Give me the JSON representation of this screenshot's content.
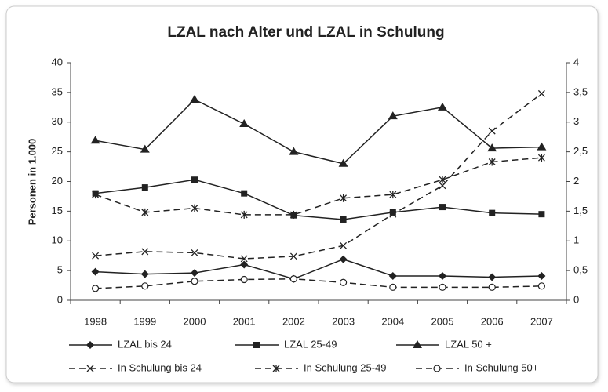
{
  "chart_data": {
    "type": "line",
    "title": "LZAL nach Alter und LZAL in Schulung",
    "ylabel": "Personen in 1.000",
    "categories": [
      "1998",
      "1999",
      "2000",
      "2001",
      "2002",
      "2003",
      "2004",
      "2005",
      "2006",
      "2007"
    ],
    "ylim": [
      0,
      40
    ],
    "yticks": [
      0,
      5,
      10,
      15,
      20,
      25,
      30,
      35,
      40
    ],
    "y2lim": [
      0,
      4
    ],
    "y2ticks": [
      0,
      {
        "value": 0.5,
        "label": "0,5"
      },
      1,
      {
        "value": 1.5,
        "label": "1,5"
      },
      2,
      {
        "value": 2.5,
        "label": "2,5"
      },
      3,
      {
        "value": 3.5,
        "label": "3,5"
      },
      4
    ],
    "series": [
      {
        "name": "LZAL bis 24",
        "color": "#222222",
        "marker": "diamond",
        "dashed": false,
        "values": [
          4.8,
          4.4,
          4.6,
          6.0,
          3.6,
          6.9,
          4.1,
          4.1,
          3.9,
          4.1
        ]
      },
      {
        "name": "LZAL 25-49",
        "color": "#222222",
        "marker": "square",
        "dashed": false,
        "values": [
          18.0,
          19.0,
          20.3,
          18.0,
          14.3,
          13.6,
          14.8,
          15.7,
          14.7,
          14.5
        ]
      },
      {
        "name": "LZAL 50 +",
        "color": "#222222",
        "marker": "triangle",
        "dashed": false,
        "values": [
          26.9,
          25.4,
          33.8,
          29.7,
          25.0,
          23.0,
          31.0,
          32.5,
          25.6,
          25.8
        ]
      },
      {
        "name": "In Schulung bis 24",
        "color": "#222222",
        "marker": "x",
        "dashed": true,
        "axis": "y2",
        "values": [
          0.75,
          0.82,
          0.8,
          0.7,
          0.74,
          0.92,
          1.45,
          1.93,
          2.85,
          3.48
        ]
      },
      {
        "name": "In Schulung 25-49",
        "color": "#222222",
        "marker": "star",
        "dashed": true,
        "axis": "y2",
        "values": [
          1.78,
          1.48,
          1.55,
          1.44,
          1.44,
          1.72,
          1.78,
          2.03,
          2.33,
          2.4
        ]
      },
      {
        "name": "In Schulung 50+",
        "color": "#222222",
        "marker": "circle",
        "dashed": true,
        "axis": "y2",
        "values": [
          0.2,
          0.24,
          0.32,
          0.35,
          0.36,
          0.3,
          0.22,
          0.22,
          0.22,
          0.24
        ]
      }
    ]
  }
}
